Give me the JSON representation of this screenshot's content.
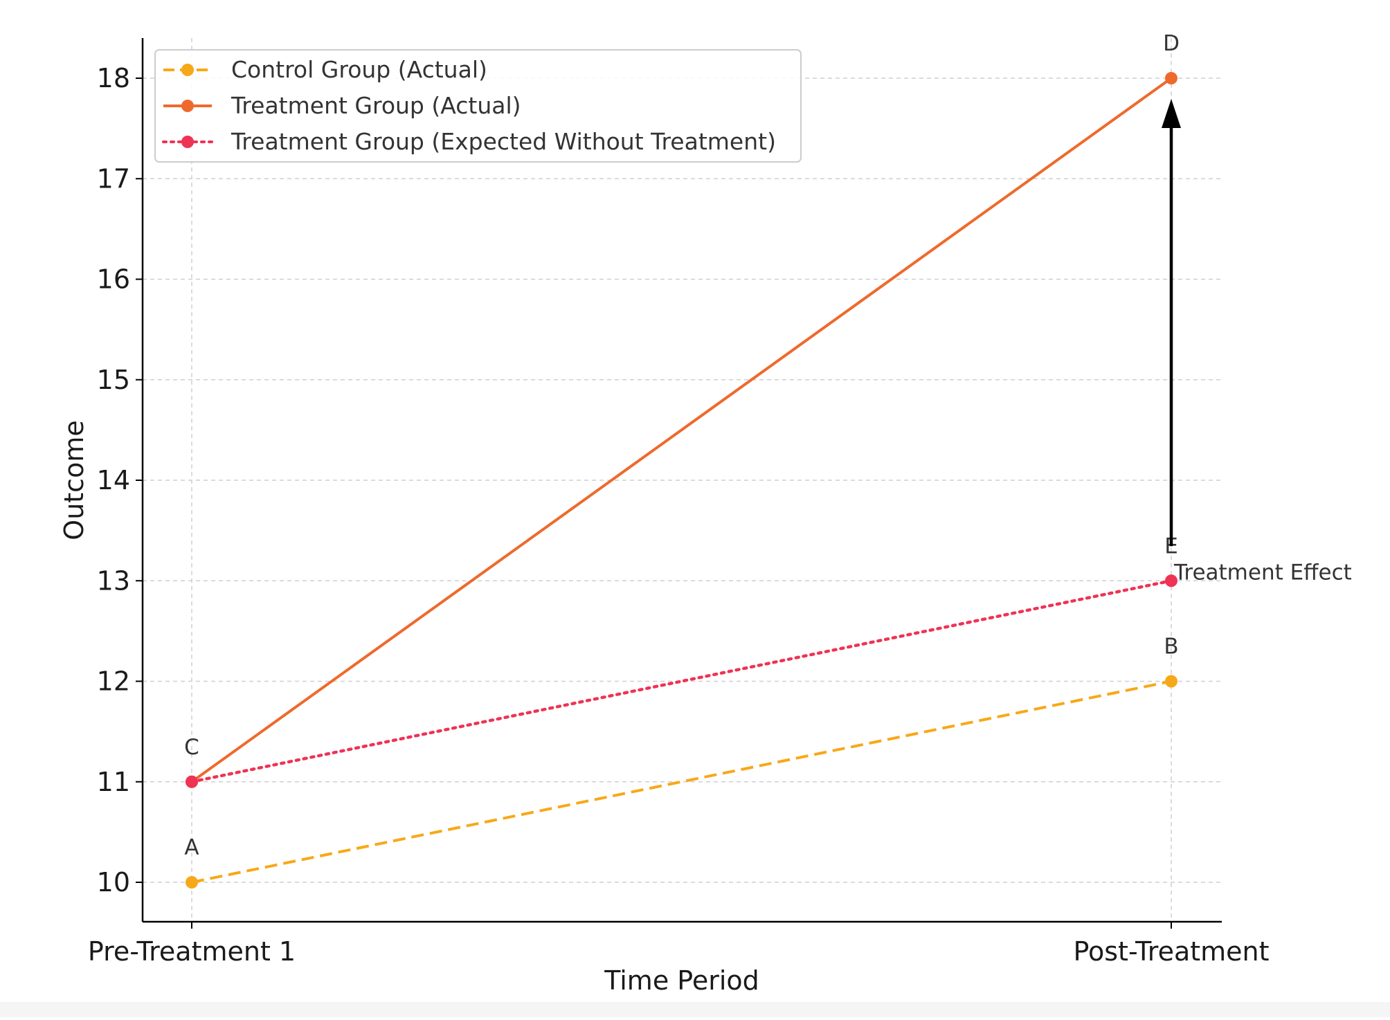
{
  "chart_data": {
    "type": "line",
    "title": "",
    "xlabel": "Time Period",
    "ylabel": "Outcome",
    "categories": [
      "Pre-Treatment 1",
      "Post-Treatment"
    ],
    "ylim": [
      9.6,
      18.4
    ],
    "yticks": [
      10,
      11,
      12,
      13,
      14,
      15,
      16,
      17,
      18
    ],
    "grid": true,
    "legend_position": "top-left",
    "series": [
      {
        "name": "Control Group (Actual)",
        "values": [
          10,
          12
        ],
        "color": "#f7a818",
        "style": "dashed",
        "point_labels": [
          "A",
          "B"
        ]
      },
      {
        "name": "Treatment Group (Actual)",
        "values": [
          11,
          18
        ],
        "color": "#ee6a2c",
        "style": "solid",
        "point_labels": [
          "C",
          "D"
        ]
      },
      {
        "name": "Treatment Group (Expected Without Treatment)",
        "values": [
          11,
          13
        ],
        "color": "#ee3355",
        "style": "dotted",
        "point_labels": [
          "",
          "E"
        ]
      }
    ],
    "annotations": [
      {
        "text": "Treatment Effect",
        "category": "Post-Treatment",
        "from": 13,
        "to": 18
      }
    ]
  }
}
